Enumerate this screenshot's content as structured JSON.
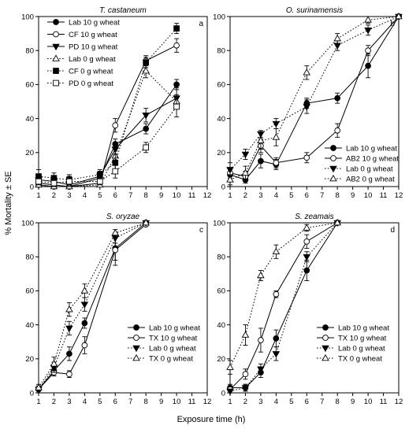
{
  "figure": {
    "ylabel": "% Mortality ± SE",
    "xlabel": "Exposure time (h)"
  },
  "chart_data": [
    {
      "type": "line",
      "panel_label": "a",
      "title": "T. castaneum",
      "xlim": [
        1,
        12
      ],
      "ylim": [
        0,
        100
      ],
      "xticks": [
        "1",
        "2",
        "3",
        "4",
        "5",
        "6",
        "7",
        "8",
        "9",
        "10",
        "11",
        "12"
      ],
      "yticks": [
        "0",
        "20",
        "40",
        "60",
        "80",
        "100"
      ],
      "legend_position": "top-left",
      "series": [
        {
          "name": "Lab 10 g wheat",
          "marker": "circle-filled",
          "line": "solid",
          "x": [
            1,
            2,
            3,
            5,
            6,
            8,
            10
          ],
          "y": [
            2,
            1,
            0,
            5,
            25,
            34,
            60
          ],
          "err": [
            2,
            2,
            1,
            2,
            3,
            3,
            3
          ]
        },
        {
          "name": "CF 10 g wheat",
          "marker": "circle-open",
          "line": "solid",
          "x": [
            1,
            2,
            3,
            5,
            6,
            8,
            10
          ],
          "y": [
            1,
            0,
            0,
            2,
            36,
            74,
            83
          ],
          "err": [
            1,
            1,
            1,
            1,
            4,
            3,
            4
          ]
        },
        {
          "name": "PD 10 g wheat",
          "marker": "triangle-down-filled",
          "line": "solid",
          "x": [
            1,
            2,
            3,
            5,
            6,
            8,
            10
          ],
          "y": [
            4,
            3,
            1,
            6,
            22,
            42,
            52
          ],
          "err": [
            3,
            2,
            2,
            3,
            4,
            4,
            6
          ]
        },
        {
          "name": "Lab 0 g wheat",
          "marker": "triangle-up-open",
          "line": "dotted",
          "x": [
            1,
            2,
            3,
            5,
            6,
            8,
            10
          ],
          "y": [
            1,
            0,
            0,
            1,
            18,
            68,
            50
          ],
          "err": [
            1,
            1,
            1,
            1,
            4,
            4,
            4
          ]
        },
        {
          "name": "CF 0 g wheat",
          "marker": "square-filled",
          "line": "dotted",
          "x": [
            1,
            2,
            3,
            5,
            6,
            8,
            10
          ],
          "y": [
            6,
            5,
            4,
            7,
            14,
            73,
            93
          ],
          "err": [
            4,
            3,
            3,
            3,
            5,
            3,
            3
          ]
        },
        {
          "name": "PD 0 g wheat",
          "marker": "square-open",
          "line": "dotted",
          "x": [
            1,
            2,
            3,
            5,
            6,
            8,
            10
          ],
          "y": [
            3,
            2,
            3,
            3,
            9,
            23,
            47
          ],
          "err": [
            2,
            2,
            3,
            2,
            4,
            3,
            6
          ]
        }
      ]
    },
    {
      "type": "line",
      "panel_label": "b",
      "title": "O. surinamensis",
      "xlim": [
        1,
        12
      ],
      "ylim": [
        0,
        100
      ],
      "xticks": [
        "1",
        "2",
        "3",
        "4",
        "5",
        "6",
        "7",
        "8",
        "9",
        "10",
        "11",
        "12"
      ],
      "yticks": [
        "0",
        "20",
        "40",
        "60",
        "80",
        "100"
      ],
      "legend_position": "bottom-right",
      "series": [
        {
          "name": "Lab 10 g wheat",
          "marker": "circle-filled",
          "line": "solid",
          "x": [
            1,
            2,
            3,
            4,
            6,
            8,
            10,
            12
          ],
          "y": [
            7,
            4,
            15,
            13,
            49,
            52,
            71,
            100
          ],
          "err": [
            3,
            2,
            4,
            3,
            3,
            3,
            7,
            0
          ]
        },
        {
          "name": "AB2 10 g wheat",
          "marker": "circle-open",
          "line": "solid",
          "x": [
            1,
            2,
            3,
            4,
            6,
            8,
            10,
            12
          ],
          "y": [
            8,
            6,
            24,
            14,
            17,
            33,
            80,
            100
          ],
          "err": [
            3,
            3,
            4,
            3,
            3,
            4,
            3,
            0
          ]
        },
        {
          "name": "Lab 0 g wheat",
          "marker": "triangle-down-filled",
          "line": "dotted",
          "x": [
            1,
            2,
            3,
            4,
            6,
            8,
            10,
            12
          ],
          "y": [
            10,
            19,
            31,
            37,
            47,
            83,
            92,
            100
          ],
          "err": [
            4,
            3,
            2,
            3,
            4,
            3,
            3,
            0
          ]
        },
        {
          "name": "AB2 0 g wheat",
          "marker": "triangle-up-open",
          "line": "dotted",
          "x": [
            1,
            2,
            3,
            4,
            6,
            8,
            10,
            12
          ],
          "y": [
            4,
            8,
            27,
            29,
            67,
            87,
            98,
            100
          ],
          "err": [
            3,
            4,
            5,
            5,
            4,
            3,
            2,
            0
          ]
        }
      ]
    },
    {
      "type": "line",
      "panel_label": "c",
      "title": "S. oryzae",
      "xlim": [
        1,
        12
      ],
      "ylim": [
        0,
        100
      ],
      "xticks": [
        "1",
        "2",
        "3",
        "4",
        "5",
        "6",
        "7",
        "8",
        "9",
        "10",
        "11",
        "12"
      ],
      "yticks": [
        "0",
        "20",
        "40",
        "60",
        "80",
        "100"
      ],
      "legend_position": "bottom-right",
      "series": [
        {
          "name": "Lab 10 g wheat",
          "marker": "circle-filled",
          "line": "solid",
          "x": [
            1,
            2,
            3,
            4,
            6,
            8
          ],
          "y": [
            2,
            13,
            23,
            41,
            85,
            100
          ],
          "err": [
            2,
            3,
            4,
            3,
            7,
            0
          ]
        },
        {
          "name": "TX 10 g wheat",
          "marker": "circle-open",
          "line": "solid",
          "x": [
            1,
            2,
            3,
            4,
            6,
            8
          ],
          "y": [
            2,
            12,
            11,
            28,
            84,
            99
          ],
          "err": [
            2,
            2,
            2,
            5,
            9,
            1
          ]
        },
        {
          "name": "Lab 0 g wheat",
          "marker": "triangle-down-filled",
          "line": "dotted",
          "x": [
            1,
            2,
            3,
            4,
            6,
            8
          ],
          "y": [
            2,
            15,
            38,
            52,
            91,
            100
          ],
          "err": [
            2,
            3,
            4,
            4,
            3,
            0
          ]
        },
        {
          "name": "TX 0 g wheat",
          "marker": "triangle-up-open",
          "line": "dotted",
          "x": [
            1,
            2,
            3,
            4,
            6,
            8
          ],
          "y": [
            3,
            17,
            49,
            60,
            94,
            100
          ],
          "err": [
            2,
            4,
            4,
            4,
            2,
            0
          ]
        }
      ]
    },
    {
      "type": "line",
      "panel_label": "d",
      "title": "S. zeamais",
      "xlim": [
        1,
        12
      ],
      "ylim": [
        0,
        100
      ],
      "xticks": [
        "1",
        "2",
        "3",
        "4",
        "5",
        "6",
        "7",
        "8",
        "9",
        "10",
        "11",
        "12"
      ],
      "yticks": [
        "0",
        "20",
        "40",
        "60",
        "80",
        "100"
      ],
      "legend_position": "bottom-right",
      "series": [
        {
          "name": "Lab 10 g wheat",
          "marker": "circle-filled",
          "line": "solid",
          "x": [
            1,
            2,
            3,
            4,
            6,
            8
          ],
          "y": [
            3,
            3,
            12,
            32,
            72,
            100
          ],
          "err": [
            2,
            2,
            3,
            5,
            6,
            0
          ]
        },
        {
          "name": "TX 10 g wheat",
          "marker": "circle-open",
          "line": "solid",
          "x": [
            1,
            2,
            3,
            4,
            6,
            8
          ],
          "y": [
            2,
            11,
            31,
            58,
            89,
            100
          ],
          "err": [
            2,
            3,
            7,
            2,
            4,
            0
          ]
        },
        {
          "name": "Lab 0 g wheat",
          "marker": "triangle-down-filled",
          "line": "dotted",
          "x": [
            1,
            2,
            3,
            4,
            6,
            8
          ],
          "y": [
            1,
            3,
            14,
            23,
            80,
            100
          ],
          "err": [
            1,
            2,
            3,
            4,
            3,
            0
          ]
        },
        {
          "name": "TX 0 g wheat",
          "marker": "triangle-up-open",
          "line": "dotted",
          "x": [
            1,
            2,
            3,
            4,
            6,
            8
          ],
          "y": [
            15,
            34,
            69,
            83,
            97,
            100
          ],
          "err": [
            4,
            6,
            3,
            4,
            2,
            0
          ]
        }
      ]
    }
  ]
}
